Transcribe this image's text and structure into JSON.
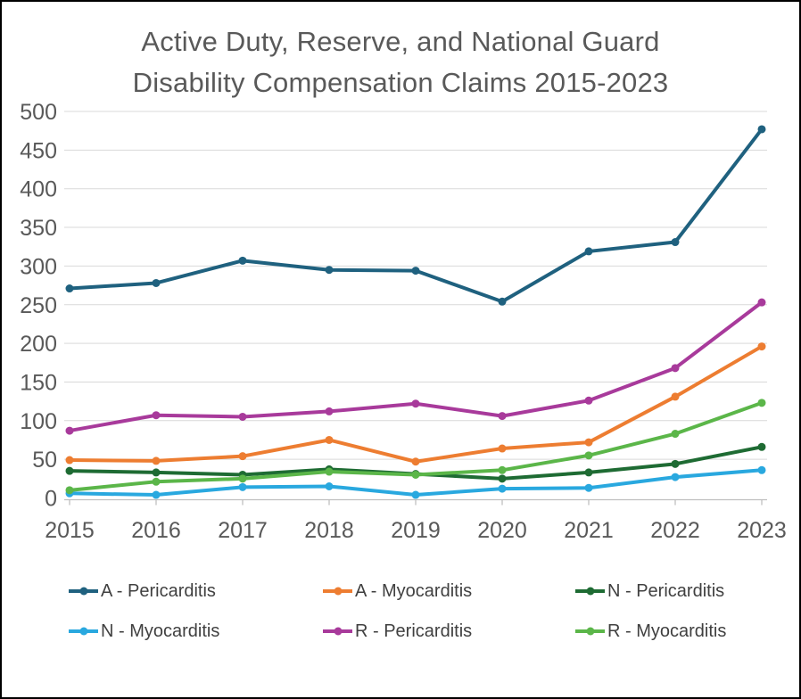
{
  "title": {
    "line1": "Active Duty, Reserve, and National Guard",
    "line2": "Disability Compensation Claims 2015-2023",
    "color": "#595959"
  },
  "chart_data": {
    "type": "line",
    "title": "Active Duty, Reserve, and National Guard Disability Compensation Claims 2015-2023",
    "categories": [
      "2015",
      "2016",
      "2017",
      "2018",
      "2019",
      "2020",
      "2021",
      "2022",
      "2023"
    ],
    "series": [
      {
        "name": "A - Pericarditis",
        "color": "#1F617F",
        "values": [
          271,
          278,
          307,
          295,
          294,
          254,
          319,
          331,
          477
        ]
      },
      {
        "name": "A - Myocarditis",
        "color": "#ED7D31",
        "values": [
          49,
          48,
          54,
          75,
          47,
          64,
          72,
          131,
          196
        ]
      },
      {
        "name": "N - Pericarditis",
        "color": "#1E6B33",
        "values": [
          35,
          33,
          30,
          37,
          31,
          25,
          33,
          44,
          66
        ]
      },
      {
        "name": "N - Myocarditis",
        "color": "#29A8DF",
        "values": [
          6,
          4,
          14,
          15,
          4,
          12,
          13,
          27,
          36
        ]
      },
      {
        "name": "R - Pericarditis",
        "color": "#A83A9B",
        "values": [
          87,
          107,
          105,
          112,
          122,
          106,
          126,
          168,
          253
        ]
      },
      {
        "name": "R - Myocarditis",
        "color": "#5BB649",
        "values": [
          10,
          21,
          25,
          34,
          30,
          36,
          55,
          83,
          123
        ]
      }
    ],
    "ylim": [
      0,
      500
    ],
    "y_tick_step": 50,
    "y_ticks": [
      "0",
      "50",
      "100",
      "150",
      "200",
      "250",
      "300",
      "350",
      "400",
      "450",
      "500"
    ],
    "grid": true,
    "grid_color": "#D9D9D9",
    "axis_color": "#BFBFBF",
    "tick_label_color": "#595959",
    "legend_position": "bottom"
  }
}
